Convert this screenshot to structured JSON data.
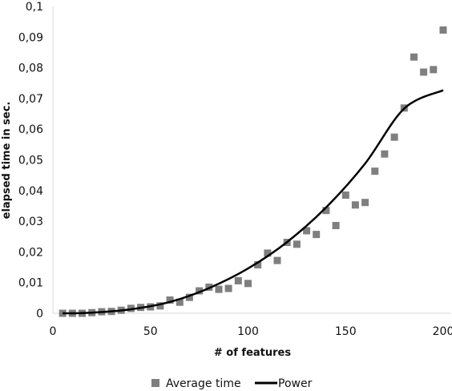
{
  "chart_data": {
    "type": "scatter",
    "xlabel": "# of features",
    "ylabel": "elapsed time in sec.",
    "xlim": [
      0,
      200
    ],
    "ylim": [
      0,
      0.1
    ],
    "x_ticks": [
      0,
      50,
      100,
      150,
      200
    ],
    "x_tick_labels": [
      "0",
      "50",
      "100",
      "150",
      "200"
    ],
    "y_ticks": [
      0,
      0.01,
      0.02,
      0.03,
      0.04,
      0.05,
      0.06,
      0.07,
      0.08,
      0.09,
      0.1
    ],
    "y_tick_labels": [
      "0",
      "0,01",
      "0,02",
      "0,03",
      "0,04",
      "0,05",
      "0,06",
      "0,07",
      "0,08",
      "0,09",
      "0,1"
    ],
    "grid": false,
    "legend_position": "bottom",
    "series": [
      {
        "name": "Average time",
        "kind": "scatter",
        "marker": "square",
        "color": "#7f7f7f",
        "x": [
          5,
          10,
          15,
          20,
          25,
          30,
          35,
          40,
          45,
          50,
          55,
          60,
          65,
          70,
          75,
          80,
          85,
          90,
          95,
          100,
          105,
          110,
          115,
          120,
          125,
          130,
          135,
          140,
          145,
          150,
          155,
          160,
          165,
          170,
          175,
          180,
          185,
          190,
          195,
          200
        ],
        "y": [
          0.0,
          0.0,
          0.0,
          0.0002,
          0.0005,
          0.0006,
          0.001,
          0.0016,
          0.0019,
          0.0021,
          0.0024,
          0.0043,
          0.0036,
          0.0052,
          0.0073,
          0.0085,
          0.0078,
          0.0081,
          0.0106,
          0.0097,
          0.0158,
          0.0196,
          0.0172,
          0.0231,
          0.0225,
          0.0269,
          0.0257,
          0.0335,
          0.0286,
          0.0385,
          0.0353,
          0.0361,
          0.0463,
          0.0519,
          0.0574,
          0.0669,
          0.0835,
          0.0786,
          0.0794,
          0.0923
        ]
      },
      {
        "name": "Power",
        "kind": "line",
        "color": "#000000",
        "points": [
          [
            5,
            0.0
          ],
          [
            20,
            0.0002
          ],
          [
            40,
            0.0013
          ],
          [
            60,
            0.0037
          ],
          [
            80,
            0.0082
          ],
          [
            100,
            0.0146
          ],
          [
            120,
            0.0232
          ],
          [
            140,
            0.0345
          ],
          [
            160,
            0.0488
          ],
          [
            180,
            0.0667
          ],
          [
            200,
            0.0727
          ]
        ]
      }
    ]
  }
}
